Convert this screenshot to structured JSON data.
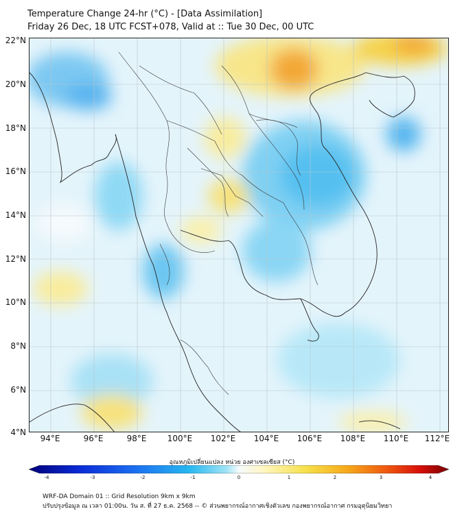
{
  "title": {
    "line1": "Temperature Change 24-hr (°C) - [Data Assimilation]",
    "line2": "Friday 26 Dec, 18 UTC FCST+078, Valid at :: Tue 30 Dec, 00 UTC"
  },
  "axes": {
    "lat_labels": [
      "22°N",
      "20°N",
      "18°N",
      "16°N",
      "14°N",
      "12°N",
      "10°N",
      "8°N",
      "6°N",
      "4°N"
    ],
    "lon_labels": [
      "94°E",
      "96°E",
      "98°E",
      "100°E",
      "102°E",
      "104°E",
      "106°E",
      "108°E",
      "110°E",
      "112°E"
    ]
  },
  "colorbar": {
    "title": "อุณหภูมิเปลี่ยนแปลง หน่วย องศาเซลเซียส (°C)",
    "ticks": [
      "-4",
      "-3",
      "-2",
      "-1",
      "0",
      "1",
      "2",
      "3",
      "4"
    ],
    "colors": [
      "#00007a",
      "#0a2bd6",
      "#1b6df0",
      "#26b6f0",
      "#9fe3f5",
      "#eaf7fb",
      "#fff6c0",
      "#f6e04a",
      "#f6a81a",
      "#ef5a10",
      "#d8100a",
      "#7a0000"
    ]
  },
  "footer": {
    "line1": "WRF-DA Domain 01 :: Grid Resolution 9km x 9km",
    "line2": "ปรับปรุงข้อมูล ณ เวลา 01:00น. วัน ส. ที่ 27 ธ.ค. 2568 -- © ส่วนพยากรณ์อากาศเชิงตัวเลข กองพยากรณ์อากาศ กรมอุตุนิยมวิทยา"
  }
}
